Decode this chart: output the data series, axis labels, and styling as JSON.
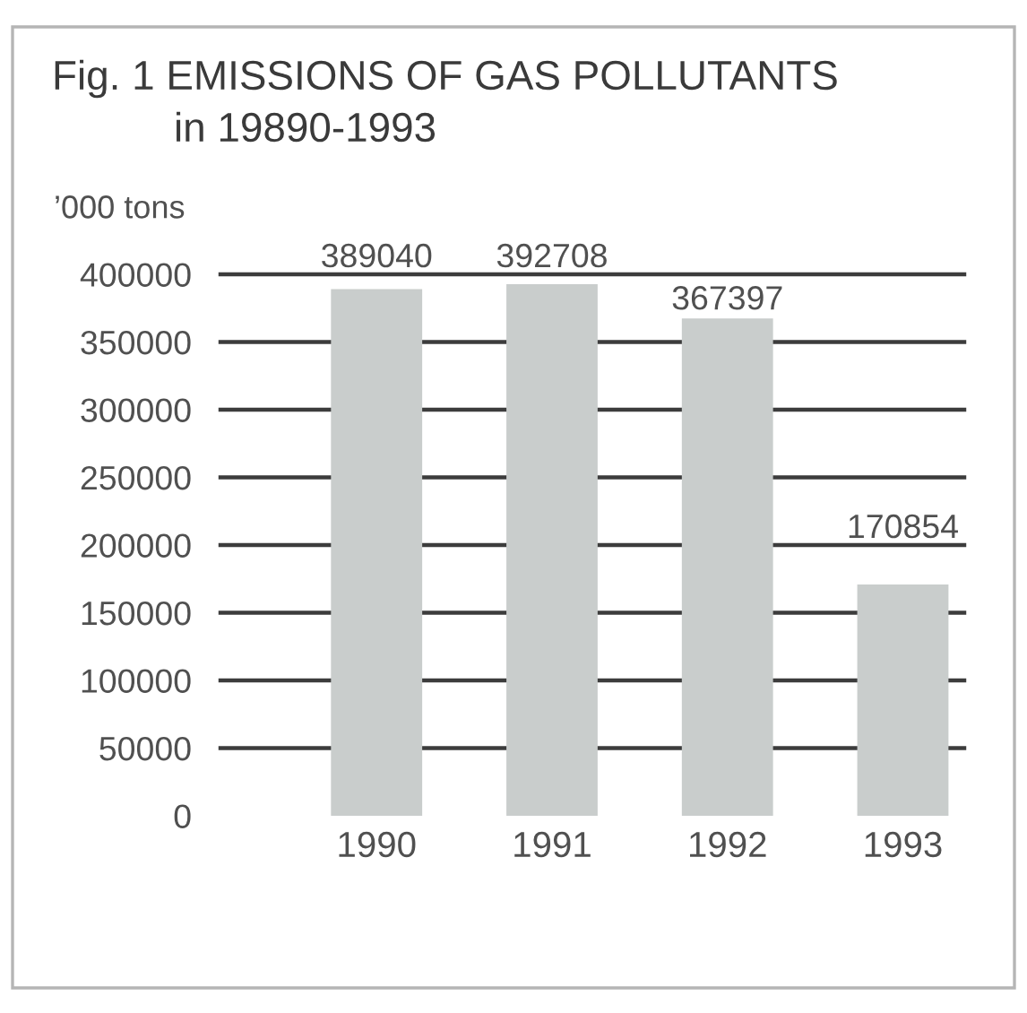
{
  "chart_data": {
    "type": "bar",
    "title": "Fig. 1 EMISSIONS OF GAS POLLUTANTS\nin 19890-1993",
    "ylabel": "’000 tons",
    "categories": [
      "1990",
      "1991",
      "1992",
      "1993"
    ],
    "values": [
      389040,
      392708,
      367397,
      170854
    ],
    "color": "#c9cdcc",
    "data_labels": true,
    "ylim": [
      0,
      400000
    ],
    "yticks": [
      0,
      50000,
      100000,
      150000,
      200000,
      250000,
      300000,
      350000,
      400000
    ],
    "grid": "y"
  }
}
